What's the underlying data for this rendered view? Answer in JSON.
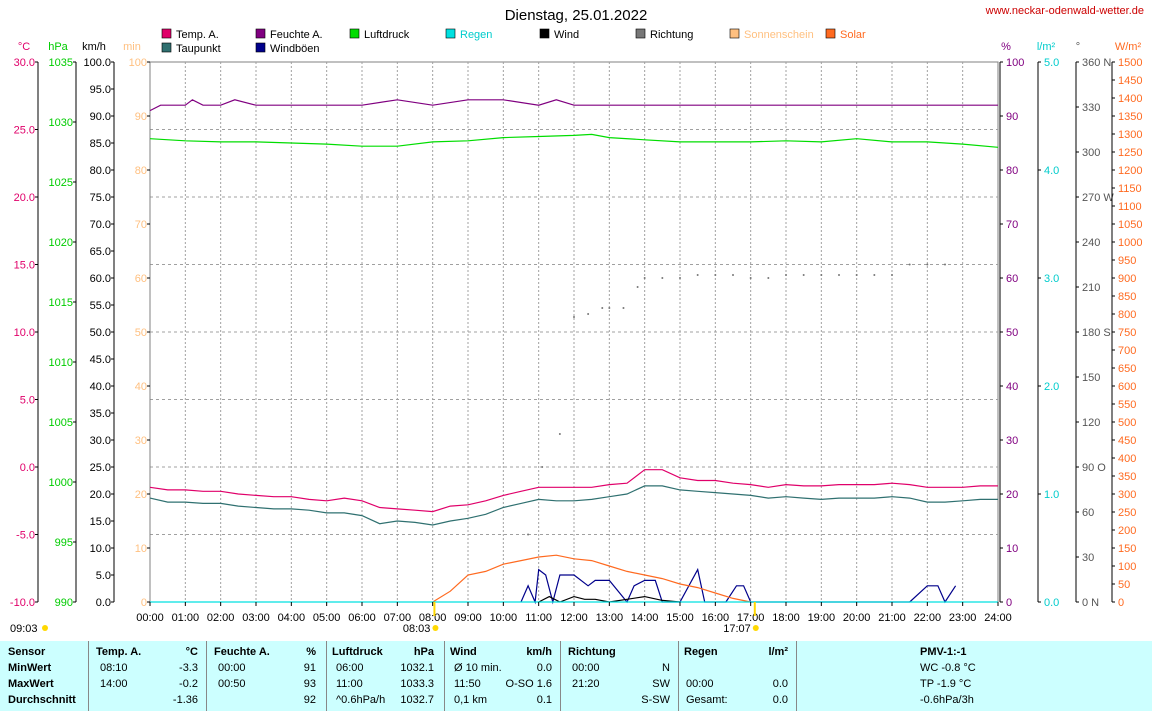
{
  "title": "Dienstag, 25.01.2022",
  "website": "www.neckar-odenwald-wetter.de",
  "legend": [
    {
      "label": "Temp. A.",
      "color": "#e0006a"
    },
    {
      "label": "Taupunkt",
      "color": "#2f7070"
    },
    {
      "label": "Feuchte A.",
      "color": "#800080"
    },
    {
      "label": "Windböen",
      "color": "#00008b"
    },
    {
      "label": "Luftdruck",
      "color": "#00dd00"
    },
    {
      "label": "Regen",
      "color": "#00e0e0"
    },
    {
      "label": "Wind",
      "color": "#000000"
    },
    {
      "label": "Richtung",
      "color": "#777777"
    },
    {
      "label": "Sonnenschein",
      "color": "#ffc080"
    },
    {
      "label": "Solar",
      "color": "#ff6a20"
    }
  ],
  "axes_units": {
    "temp": "°C",
    "pressure": "hPa",
    "wind": "km/h",
    "sun": "min",
    "humidity": "%",
    "rain": "l/m²",
    "direction": "°",
    "solar": "W/m²"
  },
  "sun_times": {
    "sunrise": "08:03",
    "sunset": "17:07",
    "earliest_label": "09:03"
  },
  "chart_data": {
    "type": "line",
    "x_ticks": [
      "00:00",
      "01:00",
      "02:00",
      "03:00",
      "04:00",
      "05:00",
      "06:00",
      "07:00",
      "08:00",
      "09:00",
      "10:00",
      "11:00",
      "12:00",
      "13:00",
      "14:00",
      "15:00",
      "16:00",
      "17:00",
      "18:00",
      "19:00",
      "20:00",
      "21:00",
      "22:00",
      "23:00",
      "24:00"
    ],
    "axes": {
      "temp": {
        "range": [
          -10,
          30
        ],
        "ticks": [
          "30.0",
          "25.0",
          "20.0",
          "15.0",
          "10.0",
          "5.0",
          "0.0",
          "-5.0",
          "-10.0"
        ]
      },
      "pressure": {
        "range": [
          990,
          1040
        ],
        "ticks": [
          "1035",
          "1030",
          "1025",
          "1020",
          "1015",
          "1010",
          "1005",
          "1000",
          "995",
          "990"
        ]
      },
      "wind": {
        "range": [
          0,
          100
        ],
        "ticks": [
          "100.0",
          "95.0",
          "90.0",
          "85.0",
          "80.0",
          "75.0",
          "70.0",
          "65.0",
          "60.0",
          "55.0",
          "50.0",
          "45.0",
          "40.0",
          "35.0",
          "30.0",
          "25.0",
          "20.0",
          "15.0",
          "10.0",
          "5.0",
          "0.0"
        ]
      },
      "sun": {
        "range": [
          0,
          100
        ],
        "ticks": [
          "100",
          "90",
          "80",
          "70",
          "60",
          "50",
          "40",
          "30",
          "20",
          "10",
          "0"
        ]
      },
      "humidity": {
        "range": [
          0,
          100
        ],
        "ticks": [
          "100",
          "90",
          "80",
          "70",
          "60",
          "50",
          "40",
          "30",
          "20",
          "10",
          "0"
        ]
      },
      "rain": {
        "range": [
          0,
          5
        ],
        "ticks": [
          "5.0",
          "4.0",
          "3.0",
          "2.0",
          "1.0",
          "0.0"
        ]
      },
      "direction": {
        "range": [
          0,
          360
        ],
        "ticks": [
          "360 N",
          "330",
          "300",
          "270 W",
          "240",
          "210",
          "180 S",
          "150",
          "120",
          "90 O",
          "60",
          "30",
          "0 N"
        ]
      },
      "solar": {
        "range": [
          0,
          1500
        ],
        "ticks": [
          "1500",
          "1450",
          "1400",
          "1350",
          "1300",
          "1250",
          "1200",
          "1150",
          "1100",
          "1050",
          "1000",
          "950",
          "900",
          "850",
          "800",
          "750",
          "700",
          "650",
          "600",
          "550",
          "500",
          "450",
          "400",
          "350",
          "300",
          "250",
          "200",
          "150",
          "100",
          "50",
          "0"
        ]
      }
    },
    "series": [
      {
        "name": "Temp. A.",
        "axis": "temp",
        "color": "#e0006a",
        "x": [
          0,
          0.5,
          1,
          1.5,
          2,
          2.5,
          3,
          3.5,
          4,
          4.5,
          5,
          5.5,
          6,
          6.5,
          7,
          7.5,
          8,
          8.5,
          9,
          9.5,
          10,
          10.5,
          11,
          11.5,
          12,
          12.5,
          13,
          13.5,
          14,
          14.5,
          15,
          15.5,
          16,
          16.5,
          17,
          17.5,
          18,
          18.5,
          19,
          19.5,
          20,
          20.5,
          21,
          21.5,
          22,
          22.5,
          23,
          23.5,
          24
        ],
        "y": [
          -1.5,
          -1.7,
          -1.7,
          -1.8,
          -1.8,
          -2.0,
          -2.1,
          -2.2,
          -2.2,
          -2.4,
          -2.5,
          -2.3,
          -2.5,
          -3.0,
          -3.1,
          -3.2,
          -3.3,
          -2.9,
          -2.8,
          -2.5,
          -2.1,
          -1.8,
          -1.5,
          -1.5,
          -1.5,
          -1.5,
          -1.3,
          -1.2,
          -0.2,
          -0.2,
          -0.8,
          -1.0,
          -1.0,
          -1.2,
          -1.3,
          -1.5,
          -1.3,
          -1.4,
          -1.4,
          -1.3,
          -1.3,
          -1.3,
          -1.2,
          -1.3,
          -1.5,
          -1.5,
          -1.5,
          -1.4,
          -1.4
        ]
      },
      {
        "name": "Taupunkt",
        "axis": "temp",
        "color": "#2f7070",
        "x": [
          0,
          0.5,
          1,
          1.5,
          2,
          2.5,
          3,
          3.5,
          4,
          4.5,
          5,
          5.5,
          6,
          6.5,
          7,
          7.5,
          8,
          8.5,
          9,
          9.5,
          10,
          10.5,
          11,
          11.5,
          12,
          12.5,
          13,
          13.5,
          14,
          14.5,
          15,
          15.5,
          16,
          16.5,
          17,
          17.5,
          18,
          18.5,
          19,
          19.5,
          20,
          20.5,
          21,
          21.5,
          22,
          22.5,
          23,
          23.5,
          24
        ],
        "y": [
          -2.3,
          -2.6,
          -2.6,
          -2.7,
          -2.7,
          -2.9,
          -3.0,
          -3.1,
          -3.1,
          -3.2,
          -3.4,
          -3.4,
          -3.6,
          -4.2,
          -4.0,
          -4.1,
          -4.3,
          -4.0,
          -3.8,
          -3.5,
          -3.0,
          -2.7,
          -2.4,
          -2.5,
          -2.5,
          -2.4,
          -2.2,
          -2.0,
          -1.4,
          -1.4,
          -1.7,
          -1.8,
          -1.9,
          -2.0,
          -2.1,
          -2.3,
          -2.2,
          -2.3,
          -2.4,
          -2.3,
          -2.3,
          -2.3,
          -2.2,
          -2.3,
          -2.6,
          -2.6,
          -2.5,
          -2.4,
          -2.4
        ]
      },
      {
        "name": "Feuchte A.",
        "axis": "humidity",
        "color": "#800080",
        "x": [
          0,
          0.3,
          1,
          1.2,
          1.5,
          2,
          2.4,
          3,
          4,
          5,
          6,
          7,
          8,
          9,
          10,
          11,
          11.5,
          12,
          13,
          14,
          15,
          16,
          17,
          18,
          19,
          20,
          21,
          22,
          23,
          24
        ],
        "y": [
          91,
          92,
          92,
          93,
          92,
          92,
          93,
          92,
          92,
          92,
          92,
          93,
          92,
          93,
          93,
          92,
          93,
          92,
          92,
          92,
          92,
          92,
          92,
          92,
          92,
          92,
          92,
          92,
          92,
          92
        ]
      },
      {
        "name": "Luftdruck",
        "axis": "pressure",
        "color": "#00dd00",
        "x": [
          0,
          1,
          2,
          3,
          4,
          5,
          6,
          7,
          8,
          9,
          10,
          11,
          12,
          12.5,
          13,
          14,
          15,
          16,
          17,
          18,
          19,
          20,
          21,
          22,
          23,
          24
        ],
        "y": [
          1032.9,
          1032.7,
          1032.6,
          1032.6,
          1032.5,
          1032.4,
          1032.2,
          1032.2,
          1032.6,
          1032.7,
          1033.0,
          1033.1,
          1033.2,
          1033.3,
          1033.0,
          1032.8,
          1032.6,
          1032.6,
          1032.6,
          1032.7,
          1032.6,
          1032.9,
          1032.6,
          1032.6,
          1032.4,
          1032.1
        ]
      },
      {
        "name": "Windböen",
        "axis": "wind",
        "color": "#00008b",
        "x": [
          10.5,
          10.7,
          10.9,
          11,
          11.2,
          11.4,
          11.6,
          11.8,
          12,
          12.4,
          12.6,
          13,
          13.5,
          13.7,
          14,
          14.3,
          14.5,
          15,
          15.5,
          15.7,
          16,
          16.3,
          16.6,
          16.8,
          17,
          21.5,
          22,
          22.3,
          22.5,
          22.8
        ],
        "y": [
          0,
          3,
          0,
          6,
          5,
          0,
          5,
          5,
          5,
          3,
          4,
          4,
          0,
          3,
          4,
          4,
          0,
          0,
          6,
          0,
          0,
          0,
          3,
          3,
          0,
          0,
          3,
          3,
          0,
          3
        ]
      },
      {
        "name": "Wind",
        "axis": "wind",
        "color": "#000000",
        "x": [
          11,
          11.3,
          11.6,
          12,
          12.3,
          12.6,
          13,
          13.5,
          14,
          14.5,
          15
        ],
        "y": [
          0,
          1,
          0,
          1,
          0.5,
          0.5,
          0,
          0.5,
          1,
          0.3,
          0
        ]
      },
      {
        "name": "Solar",
        "axis": "solar",
        "color": "#ff6a20",
        "x": [
          8,
          8.5,
          9,
          9.5,
          10,
          10.5,
          11,
          11.5,
          12,
          12.5,
          13,
          13.5,
          14,
          14.5,
          15,
          15.5,
          16,
          16.5,
          17
        ],
        "y": [
          0,
          30,
          75,
          85,
          105,
          115,
          125,
          130,
          120,
          115,
          100,
          85,
          75,
          65,
          50,
          40,
          25,
          10,
          0
        ]
      },
      {
        "name": "Regen",
        "axis": "rain",
        "color": "#00e0e0",
        "x": [
          0,
          24
        ],
        "y": [
          0,
          0
        ]
      },
      {
        "name": "Richtung",
        "axis": "direction",
        "color": "#777777",
        "style": "dotted",
        "x": [
          10.7,
          11.1,
          11.6,
          12,
          12.4,
          12.8,
          13,
          13.4,
          13.8,
          14,
          14.5,
          15,
          15.5,
          16,
          16.5,
          17,
          17.5,
          18,
          18.5,
          19,
          19.5,
          20,
          20.5,
          21,
          21.5,
          22,
          22.5
        ],
        "y": [
          45,
          90,
          112,
          190,
          192,
          196,
          196,
          196,
          210,
          216,
          216,
          216,
          218,
          218,
          218,
          216,
          216,
          218,
          218,
          218,
          218,
          218,
          218,
          218,
          225,
          225,
          225
        ]
      }
    ]
  },
  "stats": {
    "header": [
      "Sensor",
      "Temp. A.",
      "°C",
      "Feuchte A.",
      "%",
      "Luftdruck",
      "hPa",
      "Wind",
      "km/h",
      "Richtung",
      "Regen",
      "l/m²",
      "PMV-1:-1"
    ],
    "rows": [
      {
        "label": "MinWert",
        "t_time": "08:10",
        "t_val": "-3.3",
        "h_time": "00:00",
        "h_val": "91",
        "p_time": "06:00",
        "p_val": "1032.1",
        "w_label": "Ø 10 min.",
        "w_val": "0.0",
        "r_time": "00:00",
        "r_val": "N",
        "rain_time": "",
        "rain_val": "",
        "extra": "WC -0.8 °C"
      },
      {
        "label": "MaxWert",
        "t_time": "14:00",
        "t_val": "-0.2",
        "h_time": "00:50",
        "h_val": "93",
        "p_time": "11:00",
        "p_val": "1033.3",
        "w_label": "11:50",
        "w_val": "O-SO 1.6",
        "r_time": "21:20",
        "r_val": "SW",
        "rain_time": "00:00",
        "rain_val": "0.0",
        "extra": "TP -1.9 °C"
      },
      {
        "label": "Durchschnitt",
        "t_time": "",
        "t_val": "-1.36",
        "h_time": "",
        "h_val": "92",
        "p_time": "^0.6hPa/h",
        "p_val": "1032.7",
        "w_label": "0,1 km",
        "w_val": "0.1",
        "r_time": "",
        "r_val": "S-SW",
        "rain_time": "Gesamt:",
        "rain_val": "0.0",
        "extra": "-0.6hPa/3h"
      }
    ]
  }
}
